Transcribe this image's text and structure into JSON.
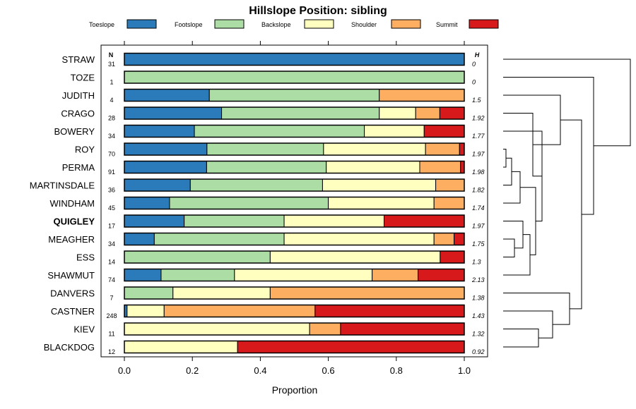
{
  "chart_data": {
    "type": "bar",
    "stacked": true,
    "title": "Hillslope Position: sibling",
    "xlabel": "Proportion",
    "ylabel": "",
    "xlim": [
      0,
      1
    ],
    "x_ticks": [
      {
        "value": 0.0,
        "label": "0.0"
      },
      {
        "value": 0.2,
        "label": "0.2"
      },
      {
        "value": 0.4,
        "label": "0.4"
      },
      {
        "value": 0.6,
        "label": "0.6"
      },
      {
        "value": 0.8,
        "label": "0.8"
      },
      {
        "value": 1.0,
        "label": "1.0"
      }
    ],
    "legend": [
      {
        "name": "Toeslope",
        "color": "#2b7bba"
      },
      {
        "name": "Footslope",
        "color": "#abdda4"
      },
      {
        "name": "Backslope",
        "color": "#ffffbf"
      },
      {
        "name": "Shoulder",
        "color": "#fdae61"
      },
      {
        "name": "Summit",
        "color": "#d7191c"
      }
    ],
    "n_header": "N",
    "h_header": "H",
    "highlight": "QUIGLEY",
    "rows": [
      {
        "name": "STRAW",
        "n": "31",
        "h": "0",
        "values": [
          1.0,
          0,
          0,
          0,
          0
        ]
      },
      {
        "name": "TOZE",
        "n": "1",
        "h": "0",
        "values": [
          0,
          1.0,
          0,
          0,
          0
        ]
      },
      {
        "name": "JUDITH",
        "n": "4",
        "h": "1.5",
        "values": [
          0.25,
          0.5,
          0,
          0.25,
          0
        ]
      },
      {
        "name": "CRAGO",
        "n": "28",
        "h": "1.92",
        "values": [
          0.286,
          0.464,
          0.107,
          0.071,
          0.072
        ]
      },
      {
        "name": "BOWERY",
        "n": "34",
        "h": "1.77",
        "values": [
          0.206,
          0.5,
          0.176,
          0,
          0.118
        ]
      },
      {
        "name": "ROY",
        "n": "70",
        "h": "1.97",
        "values": [
          0.243,
          0.343,
          0.3,
          0.1,
          0.014
        ]
      },
      {
        "name": "PERMA",
        "n": "91",
        "h": "1.98",
        "values": [
          0.242,
          0.352,
          0.275,
          0.12,
          0.011
        ]
      },
      {
        "name": "MARTINSDALE",
        "n": "36",
        "h": "1.82",
        "values": [
          0.194,
          0.389,
          0.333,
          0.084,
          0
        ]
      },
      {
        "name": "WINDHAM",
        "n": "45",
        "h": "1.74",
        "values": [
          0.133,
          0.467,
          0.311,
          0.089,
          0
        ]
      },
      {
        "name": "QUIGLEY",
        "n": "17",
        "h": "1.97",
        "values": [
          0.176,
          0.294,
          0.294,
          0,
          0.236
        ]
      },
      {
        "name": "MEAGHER",
        "n": "34",
        "h": "1.75",
        "values": [
          0.088,
          0.382,
          0.441,
          0.059,
          0.03
        ]
      },
      {
        "name": "ESS",
        "n": "14",
        "h": "1.3",
        "values": [
          0,
          0.429,
          0.5,
          0,
          0.071
        ]
      },
      {
        "name": "SHAWMUT",
        "n": "74",
        "h": "2.13",
        "values": [
          0.108,
          0.216,
          0.405,
          0.135,
          0.136
        ]
      },
      {
        "name": "DANVERS",
        "n": "7",
        "h": "1.38",
        "values": [
          0,
          0.143,
          0.286,
          0.571,
          0
        ]
      },
      {
        "name": "CASTNER",
        "n": "248",
        "h": "1.43",
        "values": [
          0.008,
          0,
          0.109,
          0.444,
          0.439
        ]
      },
      {
        "name": "KIEV",
        "n": "11",
        "h": "1.32",
        "values": [
          0,
          0,
          0.545,
          0.091,
          0.364
        ]
      },
      {
        "name": "BLACKDOG",
        "n": "12",
        "h": "0.92",
        "values": [
          0,
          0,
          0.333,
          0,
          0.667
        ]
      }
    ]
  }
}
